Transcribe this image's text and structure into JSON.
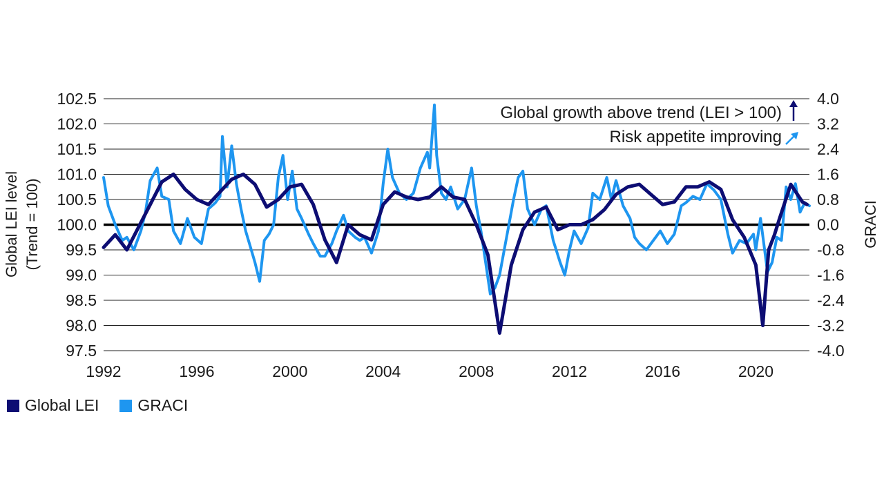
{
  "chart_data": {
    "type": "line",
    "title": "",
    "xlabel": "",
    "ylabel_left": "Global LEI level",
    "ylabel_left_sub": "(Trend = 100)",
    "ylabel_right": "GRACI",
    "xlim": [
      1992,
      2022.3
    ],
    "ylim_left": [
      97.5,
      102.5
    ],
    "ylim_right": [
      -4.0,
      4.0
    ],
    "x_ticks": [
      "1992",
      "1996",
      "2000",
      "2004",
      "2008",
      "2012",
      "2016",
      "2020"
    ],
    "y_left_ticks": [
      "97.5",
      "98.0",
      "98.5",
      "99.0",
      "99.5",
      "100.0",
      "100.5",
      "101.0",
      "101.5",
      "102.0",
      "102.5"
    ],
    "y_right_ticks": [
      "-4.0",
      "-3.2",
      "-2.4",
      "-1.6",
      "-0.8",
      "0.0",
      "0.8",
      "1.6",
      "2.4",
      "3.2",
      "4.0"
    ],
    "annotations": {
      "growth": "Global growth above trend (LEI > 100)",
      "risk": "Risk appetite improving"
    },
    "colors": {
      "lei": "#0d0d73",
      "graci": "#1e96f0",
      "zero_line": "#000000",
      "grid": "#222222"
    },
    "series": [
      {
        "name": "Global LEI",
        "axis": "left",
        "x": [
          1992.0,
          1992.5,
          1993.0,
          1993.5,
          1994.0,
          1994.5,
          1995.0,
          1995.5,
          1996.0,
          1996.5,
          1997.0,
          1997.5,
          1998.0,
          1998.5,
          1999.0,
          1999.5,
          2000.0,
          2000.5,
          2001.0,
          2001.5,
          2002.0,
          2002.5,
          2003.0,
          2003.5,
          2004.0,
          2004.5,
          2005.0,
          2005.5,
          2006.0,
          2006.5,
          2007.0,
          2007.5,
          2008.0,
          2008.5,
          2009.0,
          2009.5,
          2010.0,
          2010.5,
          2011.0,
          2011.5,
          2012.0,
          2012.5,
          2013.0,
          2013.5,
          2014.0,
          2014.5,
          2015.0,
          2015.5,
          2016.0,
          2016.5,
          2017.0,
          2017.5,
          2018.0,
          2018.5,
          2019.0,
          2019.5,
          2020.0,
          2020.3,
          2020.55,
          2020.8,
          2021.0,
          2021.5,
          2022.0,
          2022.2
        ],
        "values": [
          99.55,
          99.8,
          99.5,
          99.95,
          100.4,
          100.85,
          101.0,
          100.7,
          100.5,
          100.4,
          100.65,
          100.9,
          101.0,
          100.8,
          100.35,
          100.5,
          100.75,
          100.8,
          100.4,
          99.7,
          99.25,
          100.0,
          99.8,
          99.7,
          100.4,
          100.65,
          100.55,
          100.5,
          100.55,
          100.75,
          100.55,
          100.5,
          100.0,
          99.4,
          97.85,
          99.2,
          99.9,
          100.25,
          100.35,
          99.9,
          100.0,
          100.0,
          100.1,
          100.3,
          100.6,
          100.75,
          100.8,
          100.6,
          100.4,
          100.45,
          100.75,
          100.75,
          100.85,
          100.7,
          100.1,
          99.75,
          99.2,
          98.0,
          99.5,
          99.8,
          100.1,
          100.8,
          100.45,
          100.4
        ]
      },
      {
        "name": "GRACI",
        "axis": "right",
        "x": [
          1992.0,
          1992.2,
          1992.5,
          1992.8,
          1993.0,
          1993.3,
          1993.6,
          1993.8,
          1994.0,
          1994.3,
          1994.5,
          1994.8,
          1995.0,
          1995.3,
          1995.6,
          1995.9,
          1996.2,
          1996.5,
          1996.8,
          1997.0,
          1997.1,
          1997.3,
          1997.5,
          1997.7,
          1997.9,
          1998.1,
          1998.3,
          1998.5,
          1998.7,
          1998.9,
          1999.1,
          1999.3,
          1999.5,
          1999.7,
          1999.9,
          2000.1,
          2000.3,
          2000.5,
          2000.8,
          2001.0,
          2001.3,
          2001.5,
          2001.8,
          2002.0,
          2002.3,
          2002.5,
          2002.8,
          2003.0,
          2003.2,
          2003.5,
          2003.8,
          2004.0,
          2004.2,
          2004.4,
          2004.7,
          2005.0,
          2005.3,
          2005.6,
          2005.9,
          2006.0,
          2006.1,
          2006.2,
          2006.3,
          2006.5,
          2006.7,
          2006.9,
          2007.2,
          2007.5,
          2007.8,
          2008.0,
          2008.2,
          2008.4,
          2008.6,
          2008.8,
          2009.0,
          2009.2,
          2009.4,
          2009.6,
          2009.8,
          2010.0,
          2010.2,
          2010.5,
          2010.8,
          2011.0,
          2011.3,
          2011.6,
          2011.8,
          2012.0,
          2012.2,
          2012.5,
          2012.8,
          2013.0,
          2013.3,
          2013.6,
          2013.8,
          2014.0,
          2014.3,
          2014.6,
          2014.8,
          2015.0,
          2015.3,
          2015.6,
          2015.9,
          2016.2,
          2016.5,
          2016.8,
          2017.0,
          2017.3,
          2017.6,
          2017.9,
          2018.2,
          2018.5,
          2018.8,
          2019.0,
          2019.3,
          2019.6,
          2019.9,
          2020.0,
          2020.2,
          2020.5,
          2020.7,
          2020.9,
          2021.1,
          2021.3,
          2021.5,
          2021.7,
          2021.9,
          2022.1,
          2022.3
        ],
        "values": [
          1.5,
          0.6,
          0.0,
          -0.5,
          -0.4,
          -0.8,
          -0.2,
          0.4,
          1.4,
          1.8,
          0.9,
          0.8,
          -0.2,
          -0.6,
          0.2,
          -0.4,
          -0.6,
          0.5,
          0.7,
          0.9,
          2.8,
          1.2,
          2.5,
          1.3,
          0.5,
          -0.2,
          -0.7,
          -1.2,
          -1.8,
          -0.5,
          -0.3,
          0.0,
          1.5,
          2.2,
          0.8,
          1.7,
          0.5,
          0.2,
          -0.3,
          -0.6,
          -1.0,
          -1.0,
          -0.6,
          -0.2,
          0.3,
          -0.2,
          -0.4,
          -0.5,
          -0.4,
          -0.9,
          -0.2,
          1.3,
          2.4,
          1.5,
          1.0,
          0.8,
          1.0,
          1.8,
          2.3,
          1.8,
          2.8,
          3.8,
          2.2,
          1.0,
          0.8,
          1.2,
          0.5,
          0.8,
          1.8,
          0.6,
          -0.2,
          -1.2,
          -2.2,
          -2.0,
          -1.6,
          -0.8,
          0.0,
          0.8,
          1.5,
          1.7,
          0.5,
          0.0,
          0.5,
          0.6,
          -0.5,
          -1.2,
          -1.6,
          -0.8,
          -0.2,
          -0.6,
          -0.1,
          1.0,
          0.8,
          1.5,
          0.8,
          1.4,
          0.6,
          0.2,
          -0.4,
          -0.6,
          -0.8,
          -0.5,
          -0.2,
          -0.6,
          -0.3,
          0.6,
          0.7,
          0.9,
          0.8,
          1.3,
          1.1,
          0.8,
          -0.3,
          -0.9,
          -0.5,
          -0.6,
          -0.3,
          -0.8,
          0.2,
          -1.5,
          -1.2,
          -0.4,
          -0.5,
          1.2,
          0.8,
          1.3,
          0.4,
          0.7,
          0.6
        ]
      }
    ],
    "legend": [
      "Global LEI",
      "GRACI"
    ],
    "legend_position": "bottom-left"
  }
}
